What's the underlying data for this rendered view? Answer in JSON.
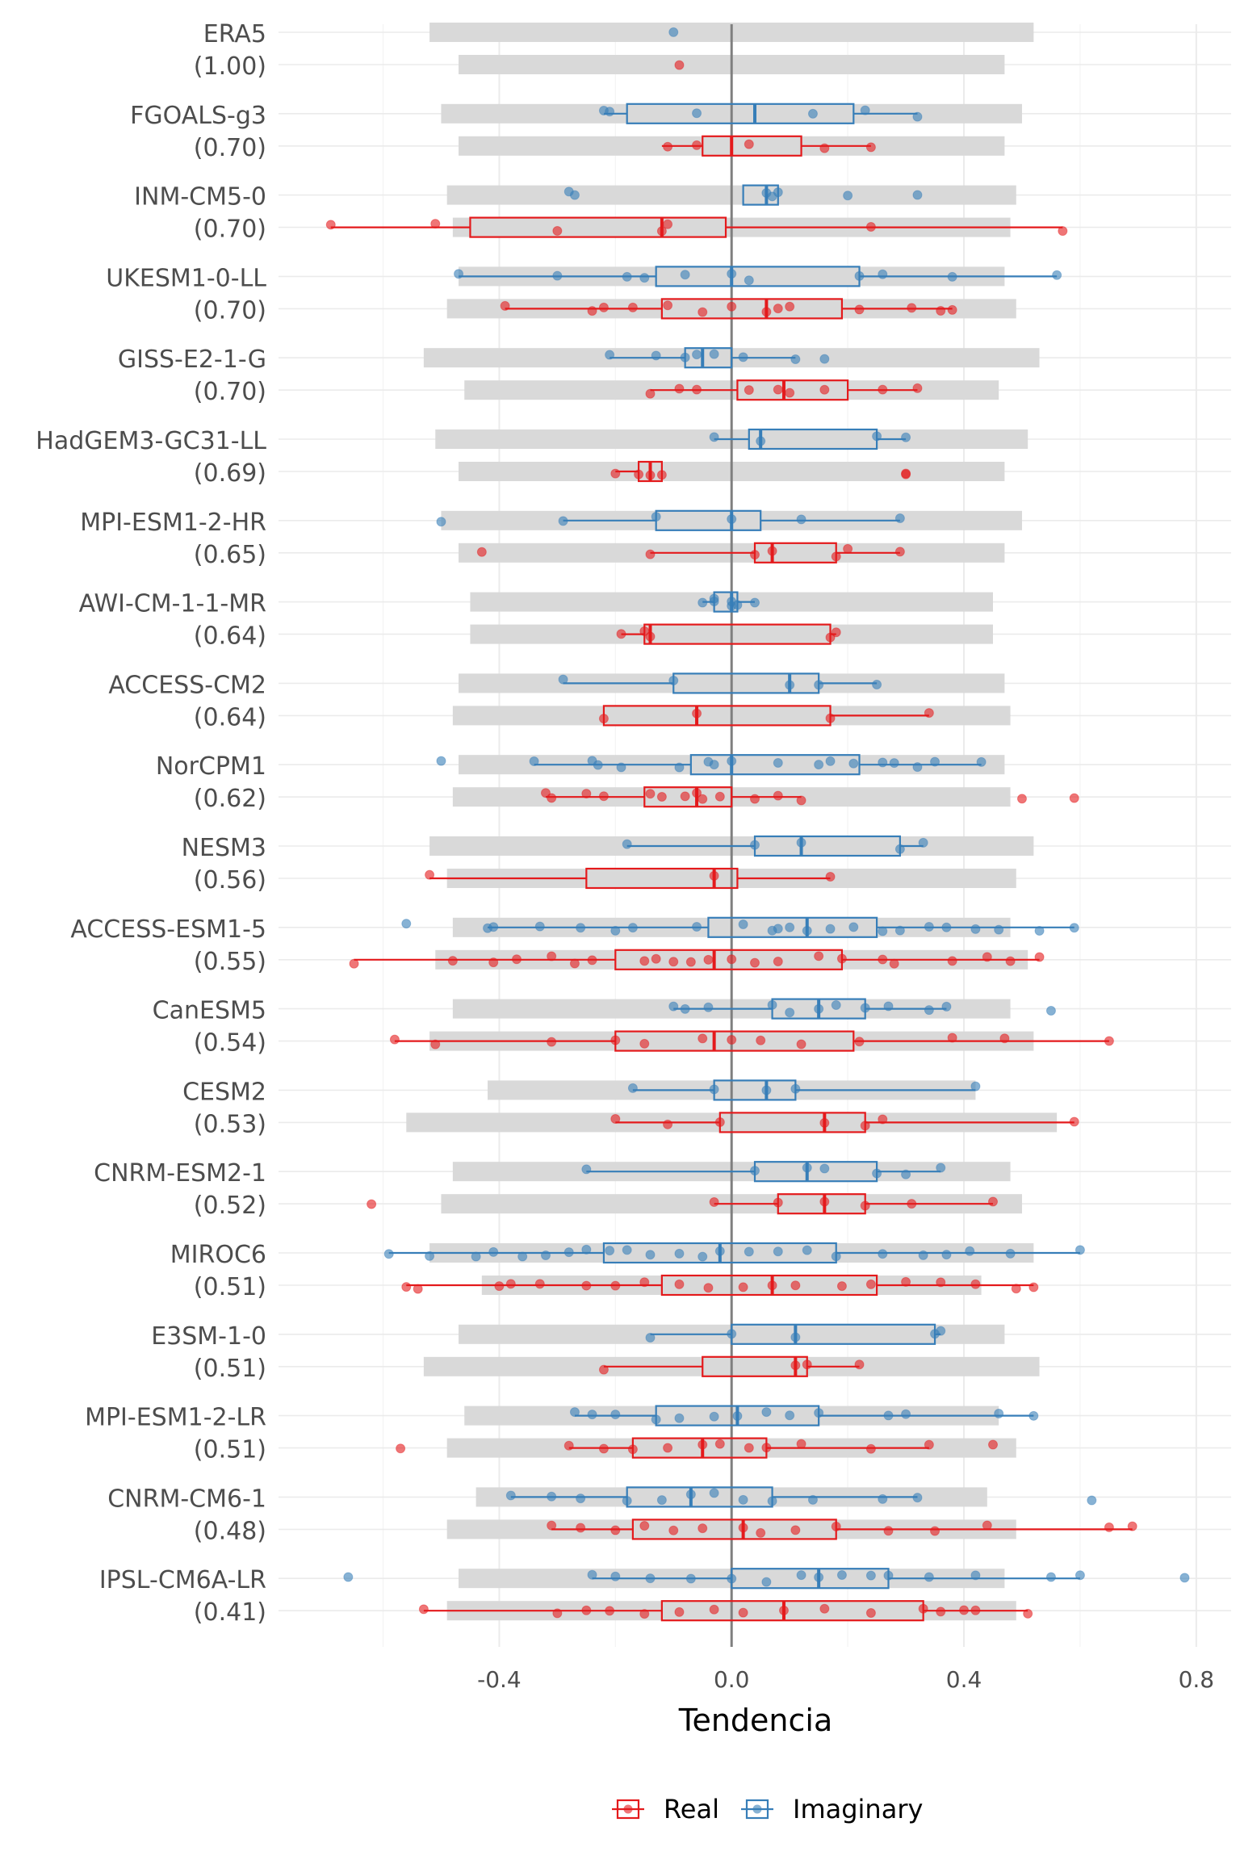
{
  "chart_data": {
    "type": "boxplot",
    "xlabel": "Tendencia",
    "xlim": [
      -0.78,
      0.86
    ],
    "xticks": [
      "-0.4",
      "0.0",
      "0.4",
      "0.8"
    ],
    "xtick_values": [
      -0.4,
      0.0,
      0.4,
      0.8
    ],
    "grid": true,
    "legend_position": "bottom",
    "legend": [
      {
        "name": "Real",
        "color": "#e41a1c"
      },
      {
        "name": "Imaginary",
        "color": "#377eb8"
      }
    ],
    "range_bar_color": "#d9d9d9",
    "zero_line": 0.0,
    "models": [
      {
        "name": "ERA5",
        "score": "(1.00)",
        "imaginary": {
          "range": [
            -0.52,
            0.52
          ],
          "box": null,
          "points": [
            -0.1
          ]
        },
        "real": {
          "range": [
            -0.47,
            0.47
          ],
          "box": null,
          "points": [
            -0.09
          ]
        }
      },
      {
        "name": "FGOALS-g3",
        "score": "(0.70)",
        "imaginary": {
          "range": [
            -0.5,
            0.5
          ],
          "box": [
            -0.22,
            -0.18,
            0.04,
            0.21,
            0.32
          ],
          "points": [
            -0.22,
            -0.21,
            -0.06,
            0.14,
            0.23,
            0.32
          ]
        },
        "real": {
          "range": [
            -0.47,
            0.47
          ],
          "box": [
            -0.12,
            -0.05,
            0.0,
            0.12,
            0.24
          ],
          "points": [
            -0.11,
            -0.06,
            0.03,
            0.16,
            0.24
          ]
        }
      },
      {
        "name": "INM-CM5-0",
        "score": "(0.70)",
        "imaginary": {
          "range": [
            -0.49,
            0.49
          ],
          "box": [
            0.02,
            0.02,
            0.06,
            0.08,
            0.08
          ],
          "points": [
            -0.28,
            -0.27,
            0.06,
            0.07,
            0.08,
            0.2,
            0.32
          ]
        },
        "real": {
          "range": [
            -0.48,
            0.48
          ],
          "box": [
            -0.69,
            -0.45,
            -0.12,
            -0.01,
            0.57
          ],
          "points": [
            -0.69,
            -0.51,
            -0.3,
            -0.12,
            -0.11,
            0.24,
            0.57
          ]
        }
      },
      {
        "name": "UKESM1-0-LL",
        "score": "(0.70)",
        "imaginary": {
          "range": [
            -0.47,
            0.47
          ],
          "box": [
            -0.47,
            -0.13,
            0.0,
            0.22,
            0.56
          ],
          "points": [
            -0.47,
            -0.3,
            -0.18,
            -0.15,
            -0.08,
            0.0,
            0.03,
            0.22,
            0.26,
            0.38,
            0.56
          ]
        },
        "real": {
          "range": [
            -0.49,
            0.49
          ],
          "box": [
            -0.39,
            -0.12,
            0.06,
            0.19,
            0.38
          ],
          "points": [
            -0.39,
            -0.24,
            -0.22,
            -0.17,
            -0.11,
            -0.05,
            0.0,
            0.06,
            0.08,
            0.1,
            0.22,
            0.31,
            0.36,
            0.38
          ]
        }
      },
      {
        "name": "GISS-E2-1-G",
        "score": "(0.70)",
        "imaginary": {
          "range": [
            -0.53,
            0.53
          ],
          "box": [
            -0.21,
            -0.08,
            -0.05,
            0.0,
            0.11
          ],
          "points": [
            -0.21,
            -0.13,
            -0.08,
            -0.06,
            -0.03,
            0.02,
            0.11,
            0.16
          ]
        },
        "real": {
          "range": [
            -0.46,
            0.46
          ],
          "box": [
            -0.14,
            0.01,
            0.09,
            0.2,
            0.32
          ],
          "points": [
            -0.14,
            -0.09,
            -0.06,
            0.03,
            0.08,
            0.1,
            0.16,
            0.26,
            0.32
          ]
        }
      },
      {
        "name": "HadGEM3-GC31-LL",
        "score": "(0.69)",
        "imaginary": {
          "range": [
            -0.51,
            0.51
          ],
          "box": [
            -0.03,
            0.03,
            0.05,
            0.25,
            0.3
          ],
          "points": [
            -0.03,
            0.05,
            0.25,
            0.3
          ]
        },
        "real": {
          "range": [
            -0.47,
            0.47
          ],
          "box": [
            -0.2,
            -0.16,
            -0.14,
            -0.12,
            -0.12
          ],
          "points": [
            -0.2,
            -0.16,
            -0.14,
            -0.12,
            0.3,
            0.3
          ]
        }
      },
      {
        "name": "MPI-ESM1-2-HR",
        "score": "(0.65)",
        "imaginary": {
          "range": [
            -0.5,
            0.5
          ],
          "box": [
            -0.29,
            -0.13,
            0.0,
            0.05,
            0.29
          ],
          "points": [
            -0.5,
            -0.29,
            -0.13,
            0.0,
            0.12,
            0.29
          ]
        },
        "real": {
          "range": [
            -0.47,
            0.47
          ],
          "box": [
            -0.14,
            0.04,
            0.07,
            0.18,
            0.29
          ],
          "points": [
            -0.43,
            -0.14,
            0.04,
            0.07,
            0.18,
            0.2,
            0.29
          ]
        }
      },
      {
        "name": "AWI-CM-1-1-MR",
        "score": "(0.64)",
        "imaginary": {
          "range": [
            -0.45,
            0.45
          ],
          "box": [
            -0.05,
            -0.03,
            0.0,
            0.01,
            0.04
          ],
          "points": [
            -0.05,
            -0.03,
            -0.03,
            0.0,
            0.0,
            0.01,
            0.04
          ]
        },
        "real": {
          "range": [
            -0.45,
            0.45
          ],
          "box": [
            -0.19,
            -0.15,
            -0.14,
            0.17,
            0.18
          ],
          "points": [
            -0.19,
            -0.15,
            -0.14,
            0.17,
            0.18
          ]
        }
      },
      {
        "name": "ACCESS-CM2",
        "score": "(0.64)",
        "imaginary": {
          "range": [
            -0.47,
            0.47
          ],
          "box": [
            -0.29,
            -0.1,
            0.1,
            0.15,
            0.25
          ],
          "points": [
            -0.29,
            -0.1,
            0.1,
            0.15,
            0.25
          ]
        },
        "real": {
          "range": [
            -0.48,
            0.48
          ],
          "box": [
            -0.22,
            -0.22,
            -0.06,
            0.17,
            0.34
          ],
          "points": [
            -0.22,
            -0.06,
            0.17,
            0.34
          ]
        }
      },
      {
        "name": "NorCPM1",
        "score": "(0.62)",
        "imaginary": {
          "range": [
            -0.47,
            0.47
          ],
          "box": [
            -0.34,
            -0.07,
            0.0,
            0.22,
            0.43
          ],
          "points": [
            -0.5,
            -0.34,
            -0.24,
            -0.23,
            -0.19,
            -0.09,
            -0.04,
            -0.03,
            0.0,
            0.08,
            0.15,
            0.17,
            0.21,
            0.26,
            0.28,
            0.32,
            0.35,
            0.43
          ]
        },
        "real": {
          "range": [
            -0.48,
            0.48
          ],
          "box": [
            -0.32,
            -0.15,
            -0.06,
            0.0,
            0.12
          ],
          "points": [
            -0.32,
            -0.31,
            -0.25,
            -0.22,
            -0.14,
            -0.12,
            -0.08,
            -0.06,
            -0.05,
            -0.02,
            0.04,
            0.08,
            0.12,
            0.5,
            0.59
          ]
        }
      },
      {
        "name": "NESM3",
        "score": "(0.56)",
        "imaginary": {
          "range": [
            -0.52,
            0.52
          ],
          "box": [
            -0.18,
            0.04,
            0.12,
            0.29,
            0.33
          ],
          "points": [
            -0.18,
            0.04,
            0.12,
            0.29,
            0.33
          ]
        },
        "real": {
          "range": [
            -0.49,
            0.49
          ],
          "box": [
            -0.52,
            -0.25,
            -0.03,
            0.01,
            0.17
          ],
          "points": [
            -0.52,
            -0.03,
            0.17
          ]
        }
      },
      {
        "name": "ACCESS-ESM1-5",
        "score": "(0.55)",
        "imaginary": {
          "range": [
            -0.48,
            0.48
          ],
          "box": [
            -0.42,
            -0.04,
            0.13,
            0.25,
            0.59
          ],
          "points": [
            -0.56,
            -0.42,
            -0.41,
            -0.33,
            -0.26,
            -0.2,
            -0.17,
            -0.06,
            0.02,
            0.07,
            0.08,
            0.1,
            0.13,
            0.17,
            0.21,
            0.26,
            0.29,
            0.34,
            0.37,
            0.42,
            0.46,
            0.53,
            0.59
          ]
        },
        "real": {
          "range": [
            -0.51,
            0.51
          ],
          "box": [
            -0.65,
            -0.2,
            -0.03,
            0.19,
            0.53
          ],
          "points": [
            -0.65,
            -0.48,
            -0.41,
            -0.37,
            -0.31,
            -0.27,
            -0.24,
            -0.15,
            -0.13,
            -0.1,
            -0.07,
            -0.04,
            0.0,
            0.04,
            0.08,
            0.15,
            0.19,
            0.26,
            0.28,
            0.38,
            0.44,
            0.48,
            0.53
          ]
        }
      },
      {
        "name": "CanESM5",
        "score": "(0.54)",
        "imaginary": {
          "range": [
            -0.48,
            0.48
          ],
          "box": [
            -0.1,
            0.07,
            0.15,
            0.23,
            0.37
          ],
          "points": [
            -0.1,
            -0.08,
            -0.04,
            0.07,
            0.1,
            0.15,
            0.18,
            0.23,
            0.27,
            0.34,
            0.37,
            0.55
          ]
        },
        "real": {
          "range": [
            -0.52,
            0.52
          ],
          "box": [
            -0.58,
            -0.2,
            -0.03,
            0.21,
            0.65
          ],
          "points": [
            -0.58,
            -0.51,
            -0.31,
            -0.2,
            -0.15,
            -0.05,
            0.0,
            0.05,
            0.12,
            0.22,
            0.38,
            0.47,
            0.65
          ]
        }
      },
      {
        "name": "CESM2",
        "score": "(0.53)",
        "imaginary": {
          "range": [
            -0.42,
            0.42
          ],
          "box": [
            -0.17,
            -0.03,
            0.06,
            0.11,
            0.42
          ],
          "points": [
            -0.17,
            -0.03,
            0.06,
            0.11,
            0.42
          ]
        },
        "real": {
          "range": [
            -0.56,
            0.56
          ],
          "box": [
            -0.2,
            -0.02,
            0.16,
            0.23,
            0.59
          ],
          "points": [
            -0.2,
            -0.11,
            -0.02,
            0.16,
            0.23,
            0.26,
            0.59
          ]
        }
      },
      {
        "name": "CNRM-ESM2-1",
        "score": "(0.52)",
        "imaginary": {
          "range": [
            -0.48,
            0.48
          ],
          "box": [
            -0.25,
            0.04,
            0.13,
            0.25,
            0.36
          ],
          "points": [
            -0.25,
            0.04,
            0.13,
            0.16,
            0.25,
            0.3,
            0.36
          ]
        },
        "real": {
          "range": [
            -0.5,
            0.5
          ],
          "box": [
            -0.03,
            0.08,
            0.16,
            0.23,
            0.45
          ],
          "points": [
            -0.62,
            -0.03,
            0.08,
            0.16,
            0.23,
            0.31,
            0.45
          ]
        }
      },
      {
        "name": "MIROC6",
        "score": "(0.51)",
        "imaginary": {
          "range": [
            -0.52,
            0.52
          ],
          "box": [
            -0.59,
            -0.22,
            -0.02,
            0.18,
            0.6
          ],
          "points": [
            -0.59,
            -0.52,
            -0.44,
            -0.41,
            -0.36,
            -0.32,
            -0.28,
            -0.25,
            -0.21,
            -0.18,
            -0.14,
            -0.09,
            -0.05,
            -0.02,
            0.03,
            0.08,
            0.13,
            0.18,
            0.26,
            0.33,
            0.37,
            0.41,
            0.48,
            0.6
          ]
        },
        "real": {
          "range": [
            -0.43,
            0.43
          ],
          "box": [
            -0.56,
            -0.12,
            0.07,
            0.25,
            0.52
          ],
          "points": [
            -0.56,
            -0.54,
            -0.4,
            -0.38,
            -0.33,
            -0.25,
            -0.2,
            -0.15,
            -0.09,
            -0.04,
            0.02,
            0.07,
            0.11,
            0.19,
            0.24,
            0.3,
            0.36,
            0.42,
            0.49,
            0.52
          ]
        }
      },
      {
        "name": "E3SM-1-0",
        "score": "(0.51)",
        "imaginary": {
          "range": [
            -0.47,
            0.47
          ],
          "box": [
            -0.14,
            0.0,
            0.11,
            0.35,
            0.36
          ],
          "points": [
            -0.14,
            0.0,
            0.11,
            0.35,
            0.36
          ]
        },
        "real": {
          "range": [
            -0.53,
            0.53
          ],
          "box": [
            -0.22,
            -0.05,
            0.11,
            0.13,
            0.22
          ],
          "points": [
            -0.22,
            0.11,
            0.13,
            0.22
          ]
        }
      },
      {
        "name": "MPI-ESM1-2-LR",
        "score": "(0.51)",
        "imaginary": {
          "range": [
            -0.46,
            0.46
          ],
          "box": [
            -0.27,
            -0.13,
            0.01,
            0.15,
            0.52
          ],
          "points": [
            -0.27,
            -0.24,
            -0.2,
            -0.13,
            -0.09,
            -0.03,
            0.01,
            0.06,
            0.1,
            0.15,
            0.27,
            0.3,
            0.46,
            0.52
          ]
        },
        "real": {
          "range": [
            -0.49,
            0.49
          ],
          "box": [
            -0.28,
            -0.17,
            -0.05,
            0.06,
            0.34
          ],
          "points": [
            -0.57,
            -0.28,
            -0.22,
            -0.17,
            -0.11,
            -0.05,
            -0.02,
            0.03,
            0.06,
            0.12,
            0.24,
            0.34,
            0.45
          ]
        }
      },
      {
        "name": "CNRM-CM6-1",
        "score": "(0.48)",
        "imaginary": {
          "range": [
            -0.44,
            0.44
          ],
          "box": [
            -0.38,
            -0.18,
            -0.07,
            0.07,
            0.32
          ],
          "points": [
            -0.38,
            -0.31,
            -0.26,
            -0.18,
            -0.12,
            -0.07,
            -0.03,
            0.02,
            0.07,
            0.14,
            0.26,
            0.32,
            0.62
          ]
        },
        "real": {
          "range": [
            -0.49,
            0.49
          ],
          "box": [
            -0.31,
            -0.17,
            0.02,
            0.18,
            0.69
          ],
          "points": [
            -0.31,
            -0.26,
            -0.2,
            -0.15,
            -0.1,
            -0.05,
            0.02,
            0.05,
            0.11,
            0.18,
            0.27,
            0.35,
            0.44,
            0.65,
            0.69
          ]
        }
      },
      {
        "name": "IPSL-CM6A-LR",
        "score": "(0.41)",
        "imaginary": {
          "range": [
            -0.47,
            0.47
          ],
          "box": [
            -0.24,
            0.0,
            0.15,
            0.27,
            0.6
          ],
          "points": [
            -0.66,
            -0.24,
            -0.2,
            -0.14,
            -0.07,
            0.0,
            0.06,
            0.12,
            0.15,
            0.19,
            0.24,
            0.27,
            0.34,
            0.42,
            0.55,
            0.6,
            0.78
          ]
        },
        "real": {
          "range": [
            -0.49,
            0.49
          ],
          "box": [
            -0.53,
            -0.12,
            0.09,
            0.33,
            0.51
          ],
          "points": [
            -0.53,
            -0.3,
            -0.25,
            -0.21,
            -0.15,
            -0.09,
            -0.03,
            0.02,
            0.09,
            0.16,
            0.24,
            0.33,
            0.36,
            0.4,
            0.42,
            0.51
          ]
        }
      }
    ]
  }
}
